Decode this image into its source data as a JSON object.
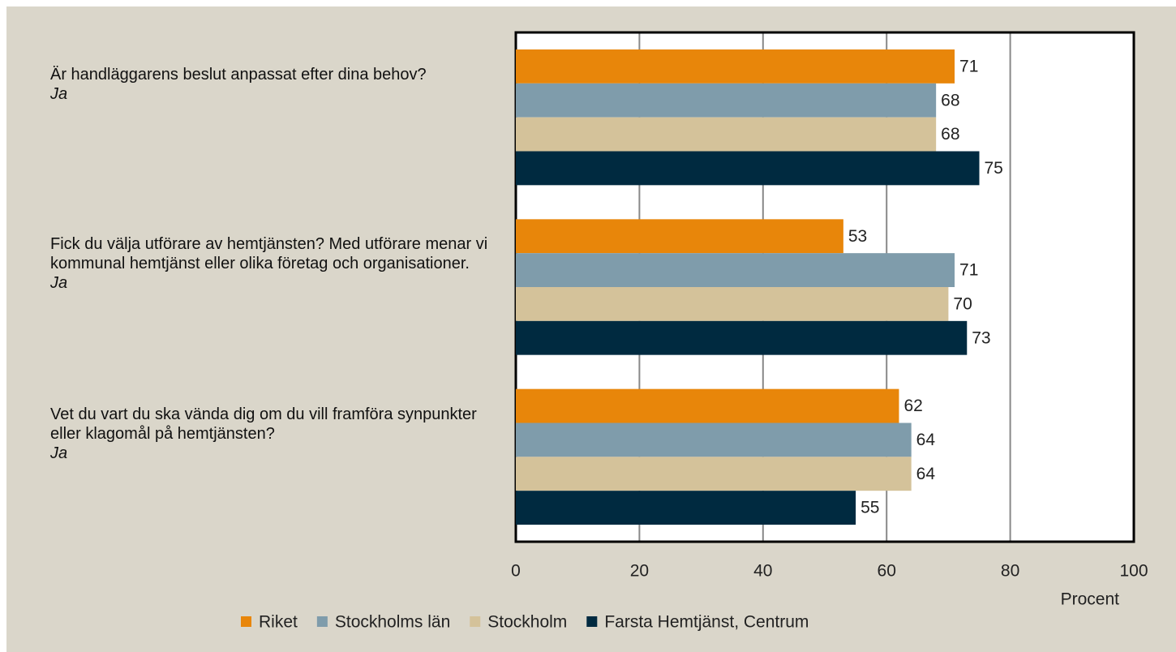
{
  "chart_data": {
    "type": "barh",
    "categories": [
      {
        "label": "Är handläggarens beslut anpassat efter dina behov?",
        "sublabel": "Ja"
      },
      {
        "label": "Fick du välja utförare av hemtjänsten? Med utförare menar vi kommunal hemtjänst eller olika företag och organisationer.",
        "sublabel": "Ja"
      },
      {
        "label": "Vet du vart du ska vända dig om du vill framföra synpunkter eller klagomål på hemtjänsten?",
        "sublabel": "Ja"
      }
    ],
    "series": [
      {
        "name": "Riket",
        "color": "#e8860a",
        "values": [
          71,
          53,
          62
        ]
      },
      {
        "name": "Stockholms län",
        "color": "#7f9cab",
        "values": [
          68,
          71,
          64
        ]
      },
      {
        "name": "Stockholm",
        "color": "#d4c29a",
        "values": [
          68,
          70,
          64
        ]
      },
      {
        "name": "Farsta Hemtjänst, Centrum",
        "color": "#002a40",
        "values": [
          75,
          73,
          55
        ]
      }
    ],
    "xlabel": "Procent",
    "xlim": [
      0,
      100
    ],
    "xticks": [
      0,
      20,
      40,
      60,
      80,
      100
    ],
    "grid": true
  }
}
